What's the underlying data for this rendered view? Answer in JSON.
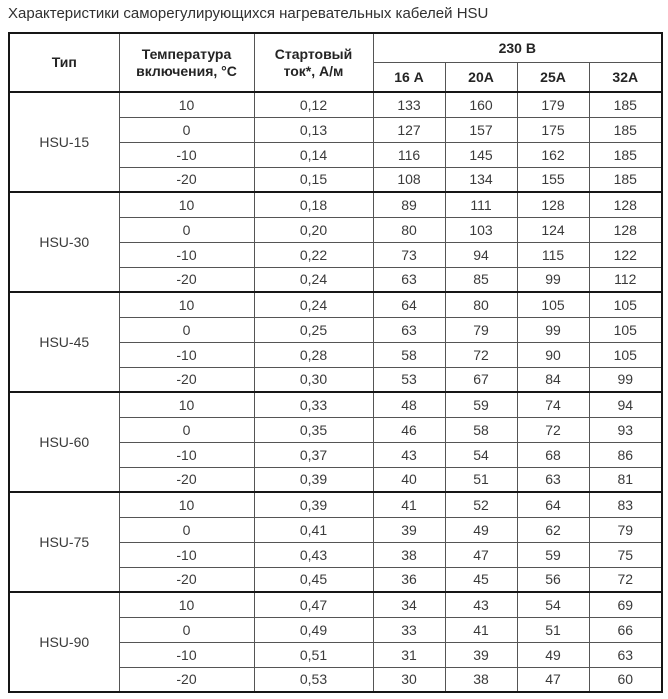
{
  "title": "Характеристики саморегулирующихся нагревательных кабелей HSU",
  "table": {
    "headers": {
      "type": "Тип",
      "temperature": "Температура включения, °С",
      "start_current": "Стартовый ток*, А/м",
      "voltage_group": "230 В",
      "currents": [
        "16 А",
        "20А",
        "25А",
        "32А"
      ]
    },
    "groups": [
      {
        "type": "HSU-15",
        "rows": [
          {
            "temp": "10",
            "start": "0,12",
            "values": [
              "133",
              "160",
              "179",
              "185"
            ]
          },
          {
            "temp": "0",
            "start": "0,13",
            "values": [
              "127",
              "157",
              "175",
              "185"
            ]
          },
          {
            "temp": "-10",
            "start": "0,14",
            "values": [
              "116",
              "145",
              "162",
              "185"
            ]
          },
          {
            "temp": "-20",
            "start": "0,15",
            "values": [
              "108",
              "134",
              "155",
              "185"
            ]
          }
        ]
      },
      {
        "type": "HSU-30",
        "rows": [
          {
            "temp": "10",
            "start": "0,18",
            "values": [
              "89",
              "111",
              "128",
              "128"
            ]
          },
          {
            "temp": "0",
            "start": "0,20",
            "values": [
              "80",
              "103",
              "124",
              "128"
            ]
          },
          {
            "temp": "-10",
            "start": "0,22",
            "values": [
              "73",
              "94",
              "115",
              "122"
            ]
          },
          {
            "temp": "-20",
            "start": "0,24",
            "values": [
              "63",
              "85",
              "99",
              "112"
            ]
          }
        ]
      },
      {
        "type": "HSU-45",
        "rows": [
          {
            "temp": "10",
            "start": "0,24",
            "values": [
              "64",
              "80",
              "105",
              "105"
            ]
          },
          {
            "temp": "0",
            "start": "0,25",
            "values": [
              "63",
              "79",
              "99",
              "105"
            ]
          },
          {
            "temp": "-10",
            "start": "0,28",
            "values": [
              "58",
              "72",
              "90",
              "105"
            ]
          },
          {
            "temp": "-20",
            "start": "0,30",
            "values": [
              "53",
              "67",
              "84",
              "99"
            ]
          }
        ]
      },
      {
        "type": "HSU-60",
        "rows": [
          {
            "temp": "10",
            "start": "0,33",
            "values": [
              "48",
              "59",
              "74",
              "94"
            ]
          },
          {
            "temp": "0",
            "start": "0,35",
            "values": [
              "46",
              "58",
              "72",
              "93"
            ]
          },
          {
            "temp": "-10",
            "start": "0,37",
            "values": [
              "43",
              "54",
              "68",
              "86"
            ]
          },
          {
            "temp": "-20",
            "start": "0,39",
            "values": [
              "40",
              "51",
              "63",
              "81"
            ]
          }
        ]
      },
      {
        "type": "HSU-75",
        "rows": [
          {
            "temp": "10",
            "start": "0,39",
            "values": [
              "41",
              "52",
              "64",
              "83"
            ]
          },
          {
            "temp": "0",
            "start": "0,41",
            "values": [
              "39",
              "49",
              "62",
              "79"
            ]
          },
          {
            "temp": "-10",
            "start": "0,43",
            "values": [
              "38",
              "47",
              "59",
              "75"
            ]
          },
          {
            "temp": "-20",
            "start": "0,45",
            "values": [
              "36",
              "45",
              "56",
              "72"
            ]
          }
        ]
      },
      {
        "type": "HSU-90",
        "rows": [
          {
            "temp": "10",
            "start": "0,47",
            "values": [
              "34",
              "43",
              "54",
              "69"
            ]
          },
          {
            "temp": "0",
            "start": "0,49",
            "values": [
              "33",
              "41",
              "51",
              "66"
            ]
          },
          {
            "temp": "-10",
            "start": "0,51",
            "values": [
              "31",
              "39",
              "49",
              "63"
            ]
          },
          {
            "temp": "-20",
            "start": "0,53",
            "values": [
              "30",
              "38",
              "47",
              "60"
            ]
          }
        ]
      }
    ]
  },
  "colors": {
    "border_thick": "#161616",
    "border_thin": "#555555",
    "text": "#3a3a3a",
    "background": "#ffffff"
  }
}
